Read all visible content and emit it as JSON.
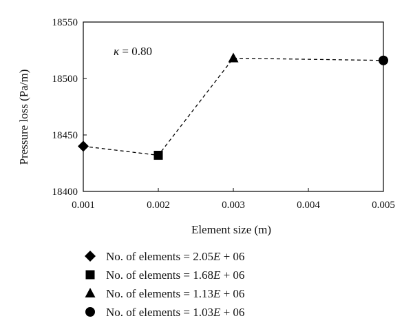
{
  "chart_data": {
    "type": "line",
    "xlabel": "Element size (m)",
    "ylabel": "Pressure loss (Pa/m)",
    "annotation": {
      "symbol": "κ",
      "text": " = 0.80"
    },
    "xlim": [
      0.001,
      0.005
    ],
    "ylim": [
      18400,
      18550
    ],
    "x_ticks": [
      "0.001",
      "0.002",
      "0.003",
      "0.004",
      "0.005"
    ],
    "y_ticks": [
      "18400",
      "18450",
      "18500",
      "18550"
    ],
    "grid": false,
    "line_style": "dashed",
    "points": [
      {
        "x": 0.001,
        "y": 18440,
        "marker": "diamond"
      },
      {
        "x": 0.002,
        "y": 18432,
        "marker": "square"
      },
      {
        "x": 0.003,
        "y": 18518,
        "marker": "triangle"
      },
      {
        "x": 0.005,
        "y": 18516,
        "marker": "circle"
      }
    ],
    "legend_placement": "bottom",
    "legend": [
      {
        "prefix": "No. of elements = 2.05",
        "exp": "E",
        "suffix": " + 06",
        "marker": "diamond"
      },
      {
        "prefix": "No. of elements = 1.68",
        "exp": "E",
        "suffix": " + 06",
        "marker": "square"
      },
      {
        "prefix": "No. of elements = 1.13",
        "exp": "E",
        "suffix": " + 06",
        "marker": "triangle"
      },
      {
        "prefix": "No. of elements = 1.03",
        "exp": "E",
        "suffix": " + 06",
        "marker": "circle"
      }
    ]
  }
}
